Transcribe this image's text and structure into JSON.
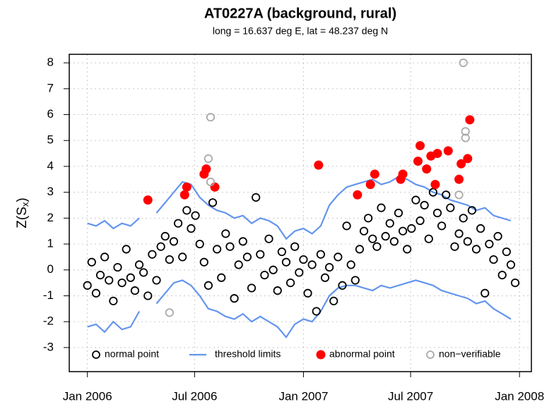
{
  "chart_data": {
    "type": "scatter",
    "title": "AT0227A (background, rural)",
    "subtitle": "long = 16.637 deg E, lat = 48.237 deg N",
    "ylabel_parts": [
      "Z(S",
      "x",
      ")"
    ],
    "xlim": [
      2005.916,
      2008.055
    ],
    "ylim": [
      -3.93,
      8.33
    ],
    "xticks": [
      {
        "value": 2006.0,
        "label": "Jan 2006"
      },
      {
        "value": 2006.496,
        "label": "Jul 2006"
      },
      {
        "value": 2007.0,
        "label": "Jan 2007"
      },
      {
        "value": 2007.496,
        "label": "Jul 2007"
      },
      {
        "value": 2008.0,
        "label": "Jan 2008"
      }
    ],
    "yticks": [
      -3,
      -2,
      -1,
      0,
      1,
      2,
      3,
      4,
      5,
      6,
      7,
      8
    ],
    "grid": true,
    "legend": "bottom",
    "series": [
      {
        "name": "normal point",
        "color": "#000000",
        "style": "open-circle",
        "x": [
          2006.0,
          2006.02,
          2006.04,
          2006.06,
          2006.08,
          2006.1,
          2006.12,
          2006.14,
          2006.16,
          2006.18,
          2006.2,
          2006.22,
          2006.24,
          2006.26,
          2006.28,
          2006.3,
          2006.32,
          2006.34,
          2006.36,
          2006.38,
          2006.4,
          2006.42,
          2006.44,
          2006.46,
          2006.48,
          2006.5,
          2006.52,
          2006.54,
          2006.56,
          2006.58,
          2006.6,
          2006.62,
          2006.64,
          2006.66,
          2006.68,
          2006.7,
          2006.72,
          2006.74,
          2006.76,
          2006.78,
          2006.8,
          2006.82,
          2006.84,
          2006.86,
          2006.88,
          2006.9,
          2006.92,
          2006.94,
          2006.96,
          2006.98,
          2007.0,
          2007.02,
          2007.04,
          2007.06,
          2007.08,
          2007.1,
          2007.12,
          2007.14,
          2007.16,
          2007.18,
          2007.2,
          2007.22,
          2007.24,
          2007.26,
          2007.28,
          2007.3,
          2007.32,
          2007.34,
          2007.36,
          2007.38,
          2007.4,
          2007.42,
          2007.44,
          2007.46,
          2007.48,
          2007.5,
          2007.52,
          2007.54,
          2007.56,
          2007.58,
          2007.6,
          2007.62,
          2007.64,
          2007.66,
          2007.68,
          2007.7,
          2007.72,
          2007.74,
          2007.76,
          2007.78,
          2007.8,
          2007.82,
          2007.84,
          2007.86,
          2007.88,
          2007.9,
          2007.92,
          2007.94,
          2007.96,
          2007.98
        ],
        "values": [
          -0.6,
          0.3,
          -0.9,
          -0.2,
          0.5,
          -0.4,
          -1.2,
          0.1,
          -0.5,
          0.8,
          -0.3,
          -0.8,
          0.2,
          -0.1,
          -1.0,
          0.6,
          -0.4,
          0.9,
          1.3,
          0.4,
          1.1,
          1.8,
          0.5,
          2.3,
          1.6,
          2.1,
          1.0,
          0.3,
          -0.6,
          2.6,
          0.8,
          -0.3,
          1.4,
          0.9,
          -1.1,
          0.2,
          1.1,
          0.5,
          -0.7,
          2.8,
          0.6,
          -0.2,
          1.2,
          0.0,
          -0.8,
          0.7,
          0.3,
          -0.5,
          0.9,
          -0.1,
          0.4,
          -0.9,
          0.2,
          -1.6,
          0.6,
          -0.3,
          0.1,
          -1.2,
          0.5,
          -0.6,
          1.7,
          0.2,
          -0.4,
          0.8,
          1.5,
          2.0,
          1.2,
          0.9,
          2.4,
          1.3,
          1.8,
          1.1,
          2.2,
          1.5,
          0.8,
          1.6,
          2.7,
          1.9,
          2.5,
          1.2,
          3.0,
          2.2,
          1.7,
          2.9,
          2.4,
          0.9,
          1.4,
          2.0,
          1.1,
          2.3,
          0.8,
          1.6,
          -0.9,
          1.0,
          0.4,
          1.3,
          -0.2,
          0.7,
          0.2,
          -0.5
        ]
      },
      {
        "name": "threshold limits",
        "color": "#6495ed",
        "style": "line",
        "x": [
          2006.0,
          2006.04,
          2006.08,
          2006.12,
          2006.16,
          2006.2,
          2006.24,
          2006.28,
          2006.32,
          2006.36,
          2006.4,
          2006.44,
          2006.48,
          2006.52,
          2006.56,
          2006.6,
          2006.64,
          2006.68,
          2006.72,
          2006.76,
          2006.8,
          2006.84,
          2006.88,
          2006.92,
          2006.96,
          2007.0,
          2007.04,
          2007.08,
          2007.12,
          2007.16,
          2007.2,
          2007.24,
          2007.28,
          2007.32,
          2007.36,
          2007.4,
          2007.44,
          2007.48,
          2007.52,
          2007.56,
          2007.6,
          2007.64,
          2007.68,
          2007.72,
          2007.76,
          2007.8,
          2007.84,
          2007.88,
          2007.92,
          2007.96
        ],
        "values": [
          1.8,
          1.7,
          1.9,
          1.6,
          1.8,
          1.7,
          2.0,
          null,
          2.2,
          2.6,
          3.0,
          3.4,
          3.3,
          2.8,
          2.5,
          2.3,
          2.2,
          2.0,
          2.1,
          1.8,
          2.0,
          1.9,
          1.7,
          1.2,
          1.5,
          1.6,
          1.4,
          1.7,
          2.5,
          2.9,
          3.2,
          3.3,
          3.4,
          3.5,
          3.3,
          3.4,
          3.6,
          3.5,
          3.3,
          3.2,
          3.0,
          2.9,
          2.7,
          2.6,
          2.5,
          2.3,
          2.4,
          2.1,
          2.0,
          1.9
        ],
        "lower": [
          -2.2,
          -2.1,
          -2.4,
          -2.0,
          -2.3,
          -2.2,
          -1.6,
          null,
          -1.3,
          -0.9,
          -0.5,
          -0.4,
          -0.6,
          -1.0,
          -1.5,
          -1.6,
          -1.8,
          -1.9,
          -1.7,
          -2.0,
          -1.8,
          -2.0,
          -2.2,
          -2.6,
          -2.1,
          -1.9,
          -2.0,
          -1.6,
          -1.0,
          -0.7,
          -0.6,
          -0.6,
          -0.7,
          -0.8,
          -0.6,
          -0.7,
          -0.6,
          -0.5,
          -0.4,
          -0.5,
          -0.6,
          -0.8,
          -0.9,
          -1.0,
          -1.1,
          -1.3,
          -1.2,
          -1.5,
          -1.7,
          -1.9
        ]
      },
      {
        "name": "abnormal point",
        "color": "#ff0000",
        "style": "filled-circle",
        "x": [
          2006.28,
          2006.45,
          2006.46,
          2006.54,
          2006.55,
          2006.59,
          2007.07,
          2007.25,
          2007.31,
          2007.33,
          2007.45,
          2007.46,
          2007.53,
          2007.54,
          2007.57,
          2007.59,
          2007.61,
          2007.62,
          2007.67,
          2007.72,
          2007.73,
          2007.76,
          2007.77
        ],
        "values": [
          2.7,
          2.9,
          3.2,
          3.7,
          3.9,
          3.2,
          4.05,
          2.9,
          3.3,
          3.7,
          3.5,
          3.7,
          4.2,
          4.8,
          3.9,
          4.4,
          3.3,
          4.5,
          4.6,
          3.5,
          4.1,
          4.3,
          5.8
        ]
      },
      {
        "name": "non−verifiable",
        "color": "#a9a9a9",
        "style": "open-circle",
        "x": [
          2006.38,
          2006.56,
          2006.57,
          2006.57,
          2007.74,
          2007.75,
          2007.75,
          2007.72
        ],
        "values": [
          -1.65,
          4.3,
          5.9,
          3.4,
          8.0,
          5.35,
          5.1,
          2.9
        ]
      }
    ]
  }
}
